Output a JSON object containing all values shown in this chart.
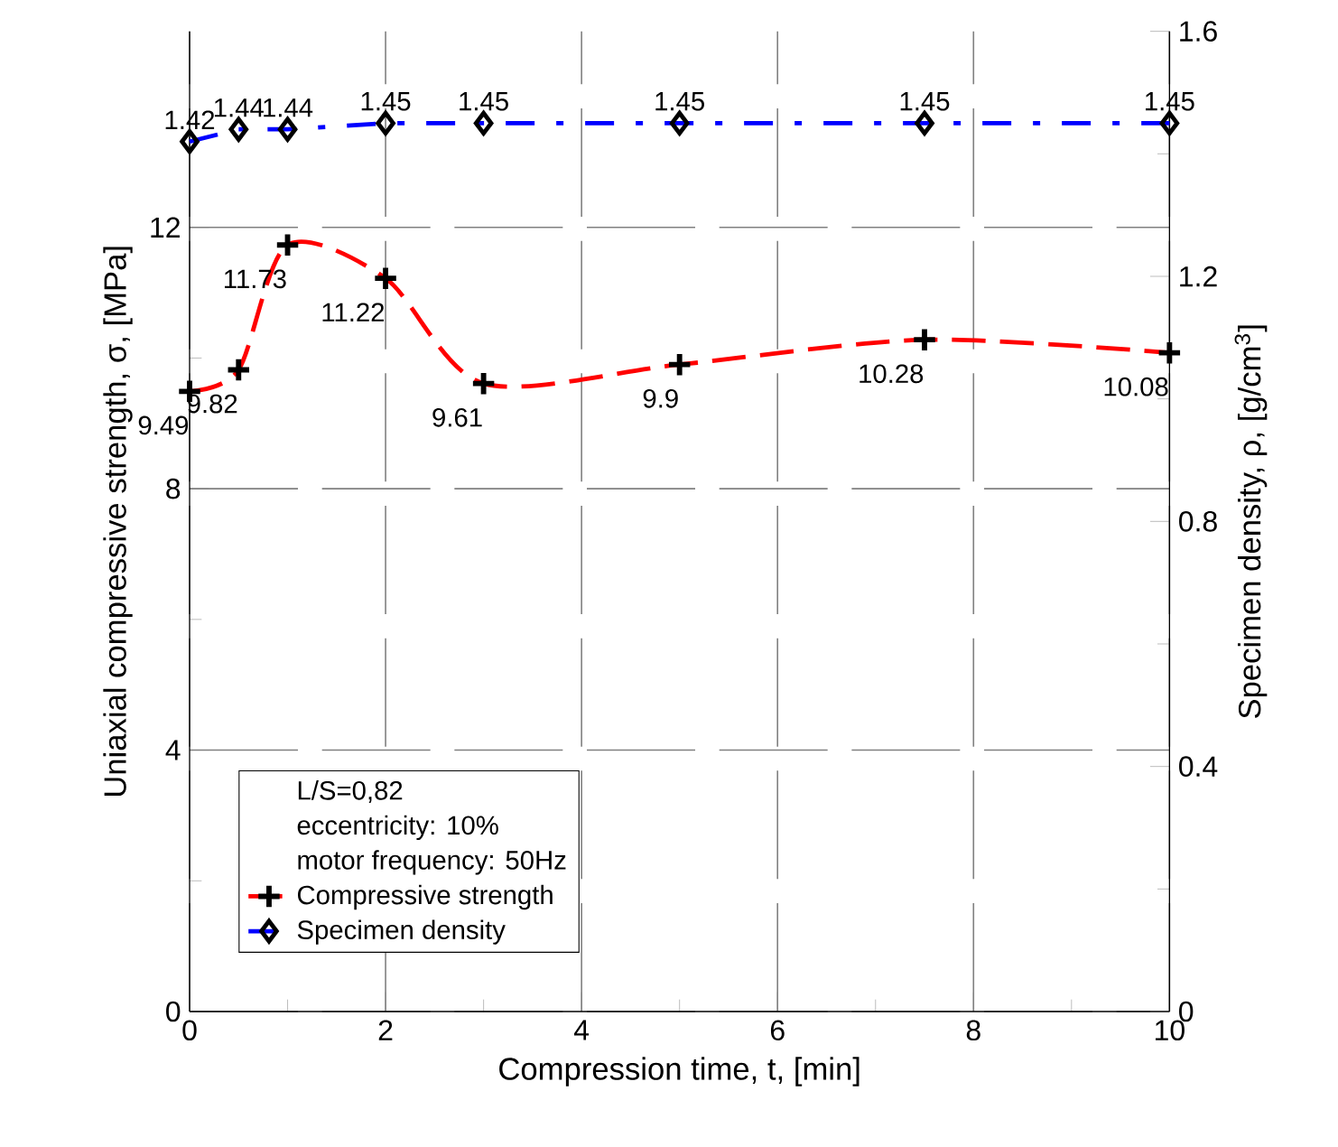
{
  "chart_data": {
    "type": "line",
    "xlabel": "Compression time, t, [min]",
    "ylabel": "Uniaxial compressive strength, σ, [MPa]",
    "y2label": "Specimen density, ρ, [g/cm$^{3}$]",
    "x": [
      0,
      0.5,
      1,
      2,
      3,
      5,
      7.5,
      10
    ],
    "series": [
      {
        "name": "Compressive strength",
        "color": "#ff0000",
        "marker": "cross",
        "line_style": "dashed",
        "values": [
          9.49,
          9.82,
          11.73,
          11.22,
          9.61,
          9.9,
          10.28,
          10.08
        ]
      },
      {
        "name": "Specimen density",
        "color": "#0000ff",
        "marker": "diamond",
        "line_style": "dashdot",
        "axis": "y2",
        "values": [
          1.42,
          1.44,
          1.44,
          1.45,
          1.45,
          1.45,
          1.45,
          1.45
        ]
      }
    ],
    "annotations": [
      "L/S=0,82",
      "eccentricity: 10%",
      "motor frequency: 50Hz"
    ],
    "data_labels": true,
    "xlim": [
      0,
      10
    ],
    "xticks": [
      0,
      2,
      4,
      6,
      8,
      10
    ],
    "ylim": [
      0,
      15
    ],
    "yticks": [
      0,
      4,
      8,
      12
    ],
    "y2lim": [
      0,
      1.6
    ],
    "y2ticks": [
      0,
      0.4,
      0.8,
      1.2,
      1.6
    ],
    "grid": true,
    "legend": "bottom left"
  }
}
